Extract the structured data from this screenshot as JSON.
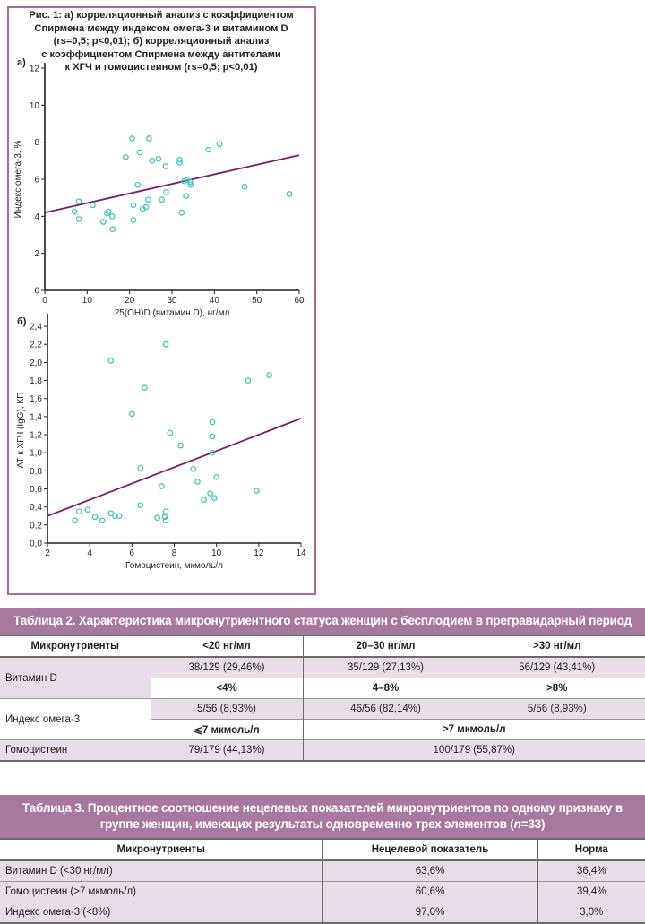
{
  "figure": {
    "title_lines": [
      "Рис. 1: а) корреляционный анализ с коэффициентом",
      "Спирмена между индексом омега-3 и витамином D",
      "(rs=0,5; p<0,01); б) корреляционный анализ",
      "с коэффициентом Спирмена между антителами",
      "к ХГЧ и гомоцистеином (rs=0,5; p<0,01)"
    ],
    "panel_a_label": "а)",
    "panel_b_label": "б)"
  },
  "chart_data": [
    {
      "type": "scatter",
      "panel": "а)",
      "title": "",
      "xlabel": "25(OH)D (витамин D), нг/мл",
      "ylabel": "Индекс омега-3, %",
      "xlim": [
        0,
        60
      ],
      "ylim": [
        0,
        12
      ],
      "xticks": [
        "0",
        "10",
        "20",
        "30",
        "40",
        "50",
        "60"
      ],
      "yticks": [
        "0",
        "2",
        "4",
        "6",
        "8",
        "10",
        "12"
      ],
      "xtick_values": [
        0,
        10,
        20,
        30,
        40,
        50,
        60
      ],
      "ytick_values": [
        0,
        2,
        4,
        6,
        8,
        10,
        12
      ],
      "grid": false,
      "marker_color": "#3cc7bd",
      "line_color": "#7b1c6f",
      "points": [
        [
          7,
          4.25
        ],
        [
          8,
          4.8
        ],
        [
          8,
          3.85
        ],
        [
          11.3,
          4.6
        ],
        [
          13.8,
          3.7
        ],
        [
          14.7,
          4.15
        ],
        [
          15,
          4.25
        ],
        [
          15.9,
          4.0
        ],
        [
          16,
          3.3
        ],
        [
          19.1,
          7.2
        ],
        [
          20.6,
          8.2
        ],
        [
          20.9,
          4.6
        ],
        [
          20.9,
          3.8
        ],
        [
          21.9,
          5.7
        ],
        [
          22.4,
          7.45
        ],
        [
          23.1,
          4.4
        ],
        [
          23.9,
          4.5
        ],
        [
          24.4,
          4.9
        ],
        [
          24.6,
          8.2
        ],
        [
          25.3,
          7.0
        ],
        [
          26.8,
          7.1
        ],
        [
          27.6,
          4.9
        ],
        [
          28.5,
          6.7
        ],
        [
          28.6,
          5.3
        ],
        [
          31.8,
          7.05
        ],
        [
          31.8,
          6.9
        ],
        [
          32.3,
          4.2
        ],
        [
          32.8,
          5.9
        ],
        [
          33.3,
          5.1
        ],
        [
          33.5,
          5.95
        ],
        [
          34.3,
          5.85
        ],
        [
          34.4,
          5.7
        ],
        [
          38.6,
          7.6
        ],
        [
          41.2,
          7.9
        ],
        [
          47.1,
          5.6
        ],
        [
          57.7,
          5.2
        ]
      ],
      "regression_line": {
        "x": [
          0,
          60
        ],
        "y": [
          4.2,
          7.3
        ]
      },
      "stats": "rs=0,5; p<0,01"
    },
    {
      "type": "scatter",
      "panel": "б)",
      "title": "",
      "xlabel": "Гомоцистеин, мкмоль/л",
      "ylabel": "АТ к ХГЧ (IgG), КП",
      "xlim": [
        2,
        14
      ],
      "ylim": [
        0,
        2.5
      ],
      "xticks": [
        "2",
        "4",
        "6",
        "8",
        "10",
        "12",
        "14"
      ],
      "yticks": [
        "0,0",
        "0,2",
        "0,4",
        "0,6",
        "0,8",
        "1,0",
        "1,2",
        "1,4",
        "1,6",
        "1,8",
        "2,0",
        "2,2",
        "2,4"
      ],
      "xtick_values": [
        2,
        4,
        6,
        8,
        10,
        12,
        14
      ],
      "ytick_values": [
        0,
        0.2,
        0.4,
        0.6,
        0.8,
        1.0,
        1.2,
        1.4,
        1.6,
        1.8,
        2.0,
        2.2,
        2.4
      ],
      "grid": false,
      "marker_color": "#3cc7bd",
      "line_color": "#7b1c6f",
      "points": [
        [
          3.3,
          0.25
        ],
        [
          3.5,
          0.35
        ],
        [
          3.9,
          0.37
        ],
        [
          4.25,
          0.29
        ],
        [
          4.6,
          0.25
        ],
        [
          5.0,
          0.33
        ],
        [
          5.0,
          2.02
        ],
        [
          5.2,
          0.3
        ],
        [
          5.4,
          0.3
        ],
        [
          6.0,
          1.43
        ],
        [
          6.4,
          0.83
        ],
        [
          6.4,
          0.42
        ],
        [
          6.6,
          1.72
        ],
        [
          7.2,
          0.28
        ],
        [
          7.4,
          0.63
        ],
        [
          7.55,
          0.29
        ],
        [
          7.6,
          0.35
        ],
        [
          7.6,
          0.25
        ],
        [
          7.6,
          2.2
        ],
        [
          7.8,
          1.22
        ],
        [
          8.3,
          1.08
        ],
        [
          8.9,
          0.82
        ],
        [
          9.1,
          0.68
        ],
        [
          9.4,
          0.48
        ],
        [
          9.7,
          0.55
        ],
        [
          9.8,
          1.0
        ],
        [
          9.8,
          1.34
        ],
        [
          9.8,
          1.18
        ],
        [
          9.9,
          0.5
        ],
        [
          10.0,
          0.73
        ],
        [
          11.5,
          1.8
        ],
        [
          11.9,
          0.58
        ],
        [
          12.5,
          1.86
        ]
      ],
      "regression_line": {
        "x": [
          2,
          14
        ],
        "y": [
          0.3,
          1.38
        ]
      },
      "stats": "rs=0,5; p<0,01"
    }
  ],
  "table2": {
    "caption": "Таблица 2. Характеристика микронутриентного статуса женщин с бесплодием в прегравидарный период",
    "header": [
      "Микронутриенты",
      "<20 нг/мл",
      "20–30 нг/мл",
      ">30 нг/мл"
    ],
    "rows": {
      "vitd_label": "Витамин D",
      "vitd_values": [
        "38/129 (29,46%)",
        "35/129 (27,13%)",
        "56/129 (43,41%)"
      ],
      "omega_headers": [
        "<4%",
        "4–8%",
        ">8%"
      ],
      "omega_label": "Индекс омега-3",
      "omega_values": [
        "5/56 (8,93%)",
        "46/56 (82,14%)",
        "5/56 (8,93%)"
      ],
      "homo_headers": [
        "⩽7 мкмоль/л",
        ">7 мкмоль/л"
      ],
      "homo_label": "Гомоцистеин",
      "homo_values": [
        "79/179 (44,13%)",
        "100/179 (55,87%)"
      ]
    }
  },
  "table3": {
    "caption_line1": "Таблица 3. Процентное соотношение нецелевых показателей микронутриентов по одному признаку в",
    "caption_line2_pre": "группе женщин, имеющих результаты одновременно трех элементов (",
    "caption_n": "n",
    "caption_line2_post": "=33)",
    "header": [
      "Микронутриенты",
      "Нецелевой показатель",
      "Норма"
    ],
    "rows": [
      [
        "Витамин D (<30 нг/мл)",
        "63,6%",
        "36,4%"
      ],
      [
        "Гомоцистеин (>7 мкмоль/л)",
        "60,6%",
        "39,4%"
      ],
      [
        "Индекс омега-3 (<8%)",
        "97,0%",
        "3,0%"
      ]
    ]
  }
}
